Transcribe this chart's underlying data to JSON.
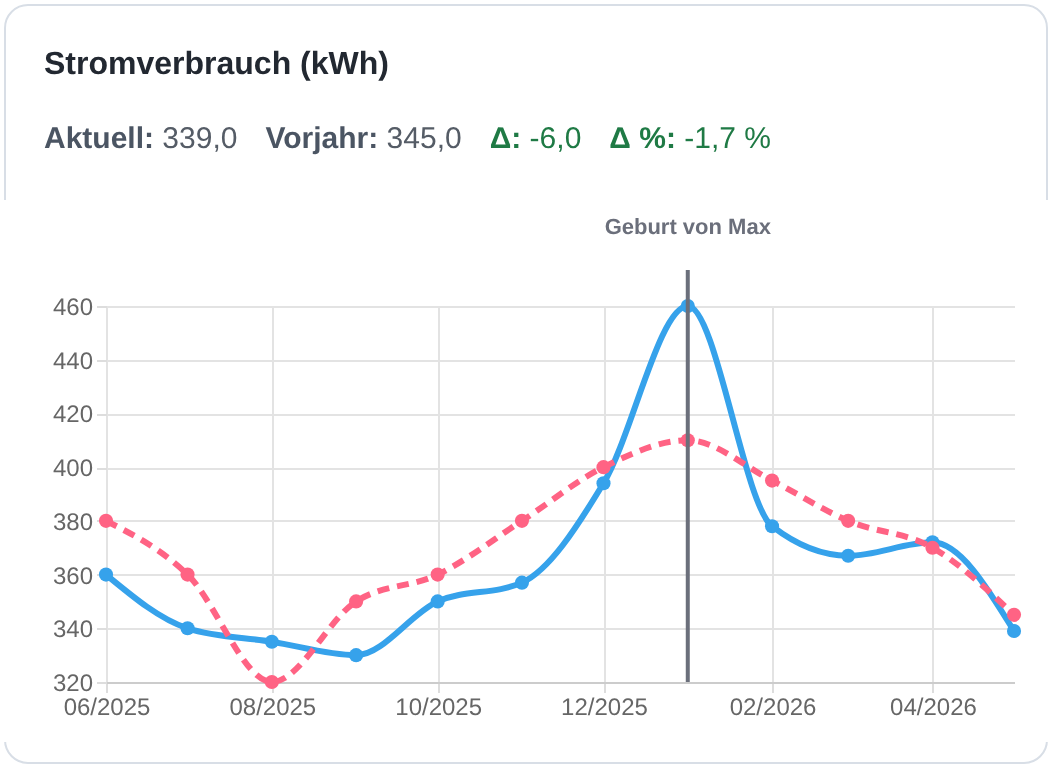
{
  "chart_data": {
    "type": "line",
    "title": "Stromverbrauch (kWh)",
    "annotations": [
      "Aktuell: 339,0",
      "Vorjahr: 345,0",
      "Δ: -6,0",
      "Δ %: -1,7 %"
    ],
    "x": [
      "2025-06",
      "2025-07",
      "2025-08",
      "2025-09",
      "2025-10",
      "2025-11",
      "2025-12",
      "2026-01",
      "2026-02",
      "2026-03",
      "2026-04",
      "2026-05"
    ],
    "series": [
      {
        "color": "#36a2eb",
        "line_style": "solid",
        "values": [
          360,
          340,
          335,
          330,
          350,
          357,
          394,
          460,
          378,
          367,
          372,
          339
        ]
      },
      {
        "color": "#ff6384",
        "line_style": "dashed",
        "values": [
          380,
          360,
          320,
          350,
          360,
          380,
          400,
          410,
          395,
          380,
          370,
          345
        ]
      }
    ],
    "xlim": [
      "2025-06",
      "2026-05"
    ],
    "xticks": [
      {
        "value": "2025-06",
        "label": "06/2025"
      },
      {
        "value": "2025-08",
        "label": "08/2025"
      },
      {
        "value": "2025-10",
        "label": "10/2025"
      },
      {
        "value": "2025-12",
        "label": "12/2025"
      },
      {
        "value": "2026-02",
        "label": "02/2026"
      },
      {
        "value": "2026-04",
        "label": "04/2026"
      }
    ],
    "ylim": [
      320,
      460
    ],
    "yticks": [
      320,
      340,
      360,
      380,
      400,
      420,
      440,
      460
    ],
    "ref_lines": [
      {
        "axis": "x",
        "value": "2026-01",
        "label": "Geburt von Max",
        "color": "#6b6f7b"
      }
    ],
    "grid": true,
    "marker": "circle"
  }
}
